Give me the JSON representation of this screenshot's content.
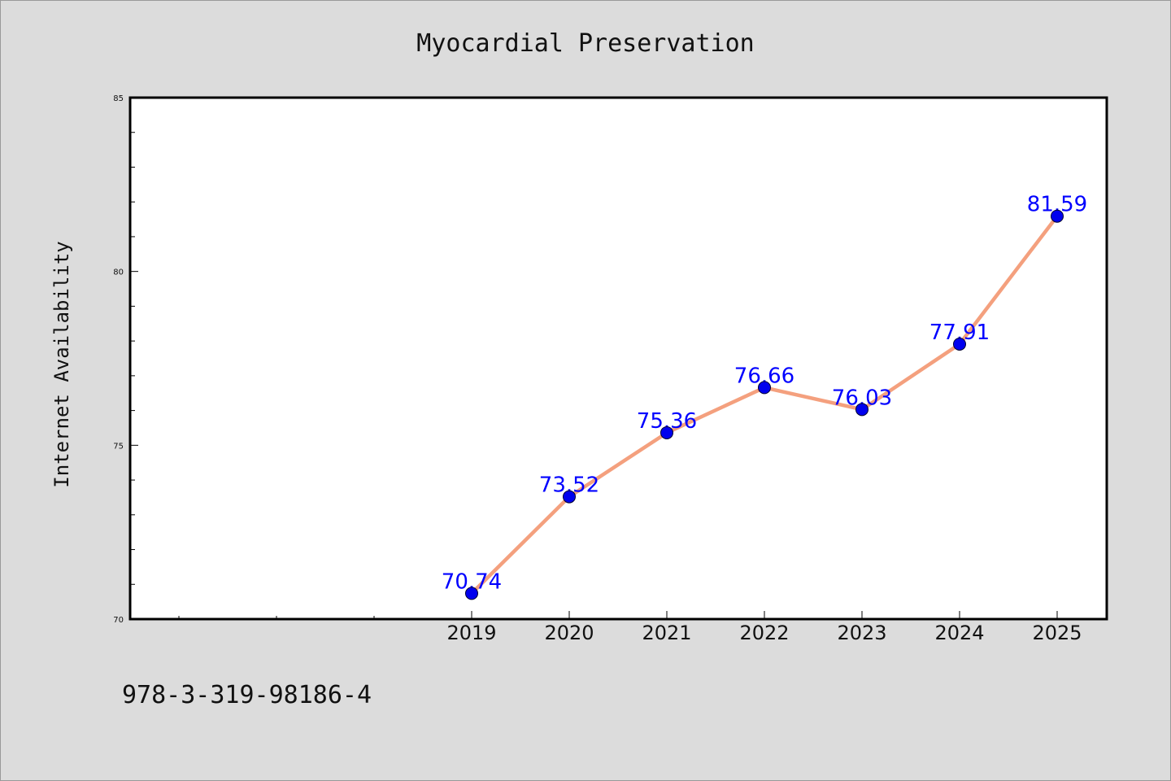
{
  "chart_data": {
    "type": "line",
    "title": "Myocardial Preservation",
    "xlabel": "",
    "ylabel": "Internet Availability",
    "categories": [
      "2019",
      "2020",
      "2021",
      "2022",
      "2023",
      "2024",
      "2025"
    ],
    "series": [
      {
        "values": [
          70.74,
          73.52,
          75.36,
          76.66,
          76.03,
          77.91,
          81.59
        ]
      }
    ],
    "data_labels": [
      "70.74",
      "73.52",
      "75.36",
      "76.66",
      "76.03",
      "77.91",
      "81.59"
    ],
    "ylim": [
      70,
      85
    ],
    "yticks": [
      "70",
      "75",
      "80",
      "85"
    ],
    "grid": false,
    "legend": "none",
    "colors": {
      "line": "#f4a07e",
      "marker": "#0000ee",
      "data_label": "#0000ff",
      "background": "#dcdcdc",
      "plot_background": "#ffffff"
    }
  },
  "footnote": "978-3-319-98186-4"
}
